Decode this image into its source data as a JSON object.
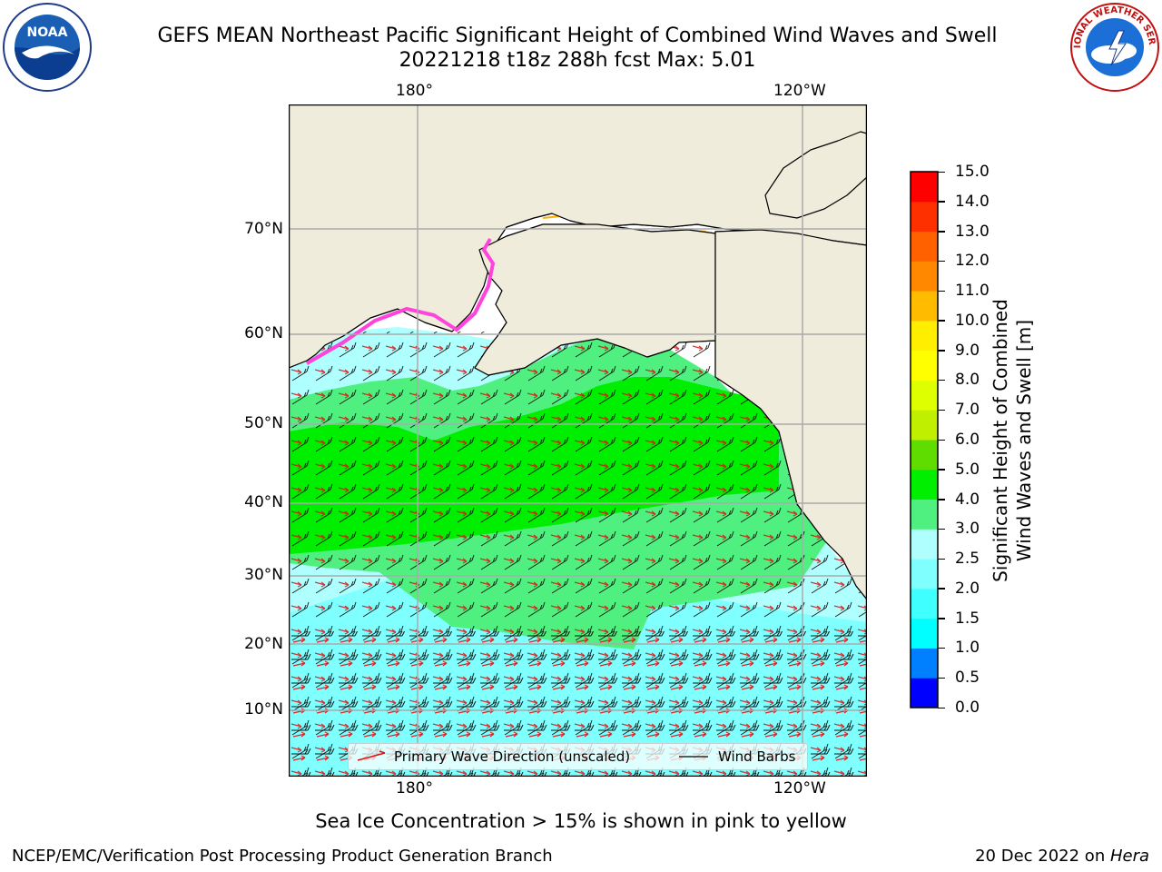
{
  "title": {
    "line1": "GEFS MEAN Northeast Pacific Significant Height of Combined Wind Waves and Swell",
    "line2": "20221218 t18z 288h fcst   Max: 5.01"
  },
  "map": {
    "top_lon_labels": [
      "180°",
      "120°W"
    ],
    "bottom_lon_labels": [
      "180°",
      "120°W"
    ],
    "lat_labels": [
      "70°N",
      "60°N",
      "50°N",
      "40°N",
      "30°N",
      "20°N",
      "10°N"
    ],
    "land_color": "#efecdc",
    "grid_color": "#aaaaaa"
  },
  "colorbar": {
    "ticks": [
      "0.0",
      "0.5",
      "1.0",
      "1.5",
      "2.0",
      "2.5",
      "3.0",
      "4.0",
      "5.0",
      "6.0",
      "7.0",
      "8.0",
      "9.0",
      "10.0",
      "11.0",
      "12.0",
      "13.0",
      "14.0",
      "15.0"
    ],
    "colors": [
      "#0000ff",
      "#0080ff",
      "#00ffff",
      "#40ffff",
      "#80ffff",
      "#b0ffff",
      "#50f080",
      "#00ee00",
      "#60dd00",
      "#c0f000",
      "#ddff00",
      "#ffff00",
      "#ffee00",
      "#ffbb00",
      "#ff8800",
      "#ff6000",
      "#ff3000",
      "#ff0000"
    ],
    "label_line1": "Significant Height of Combined",
    "label_line2": "Wind Waves and Swell [m]"
  },
  "legend": {
    "wave_label": "Primary Wave Direction (unscaled)",
    "barb_label": "Wind Barbs"
  },
  "caption": "Sea Ice Concentration > 15% is shown in pink to yellow",
  "footer": {
    "left": "NCEP/EMC/Verification Post Processing Product Generation Branch",
    "date": "20 Dec 2022 on ",
    "machine": "Hera"
  },
  "logos": {
    "noaa": "NOAA",
    "nws": "NATIONAL WEATHER SERVICE"
  }
}
